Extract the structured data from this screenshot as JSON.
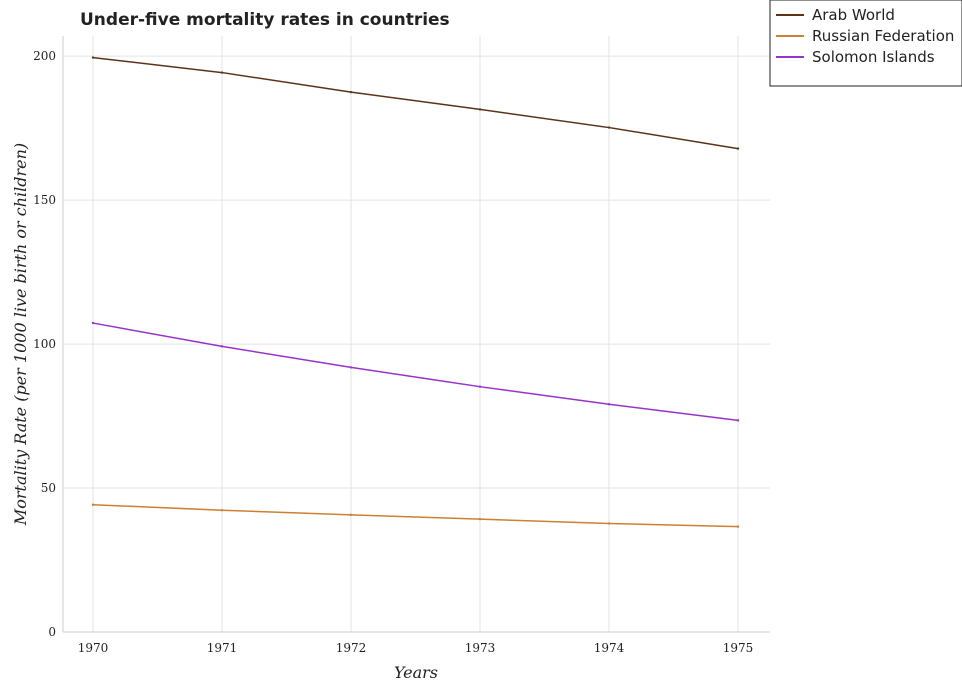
{
  "chart_data": {
    "type": "line",
    "title": "Under-five mortality rates in countries",
    "xlabel": "Years",
    "ylabel": "Mortality Rate (per 1000 live birth or children)",
    "categories": [
      "1970",
      "1971",
      "1972",
      "1973",
      "1974",
      "1975"
    ],
    "yticks": [
      0,
      50,
      100,
      150,
      200
    ],
    "ylim": [
      0,
      207
    ],
    "grid": true,
    "legend_position": "top-right",
    "series": [
      {
        "name": "Arab World",
        "color": "#5c3317",
        "values": [
          199.5,
          194.3,
          187.5,
          181.5,
          175.2,
          167.9
        ]
      },
      {
        "name": "Russian Federation",
        "color": "#cd7f32",
        "values": [
          44.2,
          42.3,
          40.7,
          39.2,
          37.7,
          36.6
        ]
      },
      {
        "name": "Solomon Islands",
        "color": "#9932cc",
        "values": [
          107.3,
          99.2,
          91.9,
          85.2,
          79.1,
          73.5
        ]
      }
    ]
  }
}
